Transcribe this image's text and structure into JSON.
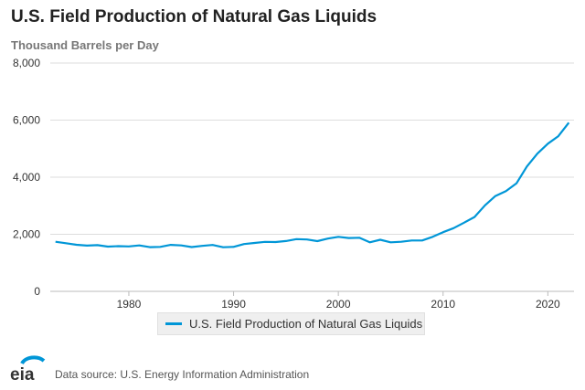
{
  "chart_data": {
    "type": "line",
    "title": "U.S. Field Production of Natural Gas Liquids",
    "ylabel": "Thousand Barrels per Day",
    "ylim": [
      0,
      8000
    ],
    "xlim": [
      1972.5,
      2022.5
    ],
    "yticks": [
      0,
      2000,
      4000,
      6000,
      8000
    ],
    "ytick_labels": [
      "0",
      "2,000",
      "4,000",
      "6,000",
      "8,000"
    ],
    "xticks": [
      1980,
      1990,
      2000,
      2010,
      2020
    ],
    "xtick_labels": [
      "1980",
      "1990",
      "2000",
      "2010",
      "2020"
    ],
    "grid": true,
    "legend_position": "bottom",
    "series": [
      {
        "name": "U.S. Field Production of Natural Gas Liquids",
        "color": "#0096d7",
        "x": [
          1973,
          1974,
          1975,
          1976,
          1977,
          1978,
          1979,
          1980,
          1981,
          1982,
          1983,
          1984,
          1985,
          1986,
          1987,
          1988,
          1989,
          1990,
          1991,
          1992,
          1993,
          1994,
          1995,
          1996,
          1997,
          1998,
          1999,
          2000,
          2001,
          2002,
          2003,
          2004,
          2005,
          2006,
          2007,
          2008,
          2009,
          2010,
          2011,
          2012,
          2013,
          2014,
          2015,
          2016,
          2017,
          2018,
          2019,
          2020,
          2021,
          2022
        ],
        "values": [
          1738,
          1688,
          1633,
          1604,
          1618,
          1567,
          1584,
          1573,
          1609,
          1550,
          1559,
          1630,
          1609,
          1551,
          1595,
          1625,
          1546,
          1559,
          1659,
          1697,
          1736,
          1727,
          1762,
          1830,
          1817,
          1759,
          1850,
          1911,
          1868,
          1880,
          1719,
          1809,
          1717,
          1739,
          1783,
          1784,
          1910,
          2074,
          2216,
          2408,
          2606,
          3015,
          3342,
          3509,
          3784,
          4373,
          4826,
          5175,
          5436,
          5911
        ]
      }
    ]
  },
  "source": "Data source: U.S. Energy Information Administration",
  "logo_text": "eia"
}
